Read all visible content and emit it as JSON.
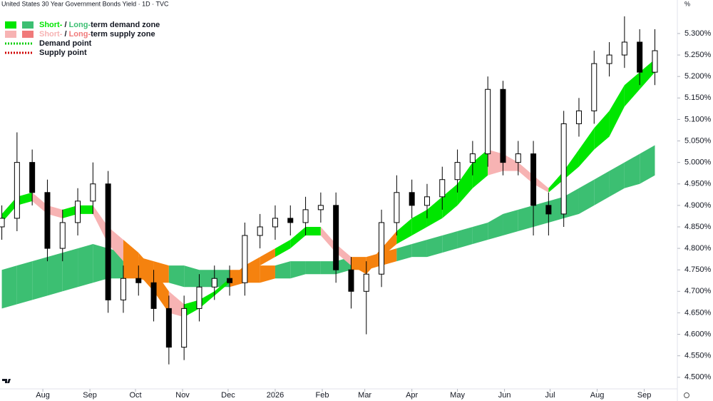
{
  "chart_data": {
    "type": "candlestick",
    "title": "United States 30 Year Government Bonds Yield · 1D · TVC",
    "y_unit": "%",
    "x": [
      4,
      14,
      24,
      34,
      44,
      54,
      64,
      74,
      84,
      94,
      104,
      114,
      124,
      134,
      144,
      154,
      164,
      174,
      184,
      194,
      204,
      214,
      224,
      234,
      244,
      254,
      264,
      274,
      284,
      294,
      304,
      314,
      324,
      334,
      344,
      354,
      364,
      374,
      384,
      394,
      404,
      414,
      424,
      434
    ],
    "open": [
      4.85,
      4.87,
      5.0,
      4.93,
      4.8,
      4.86,
      4.91,
      4.95,
      4.68,
      4.73,
      4.72,
      4.66,
      4.57,
      4.66,
      4.71,
      4.73,
      4.72,
      4.83,
      4.85,
      4.87,
      4.86,
      4.89,
      4.9,
      4.75,
      4.7,
      4.74,
      4.86,
      4.93,
      4.9,
      4.92,
      4.96,
      5.0,
      5.02,
      5.17,
      5.0,
      5.02,
      4.9,
      4.88,
      5.09,
      5.12,
      5.23,
      5.25,
      5.28,
      5.21
    ],
    "high": [
      4.9,
      5.07,
      5.03,
      4.96,
      4.89,
      4.94,
      5.0,
      4.98,
      4.76,
      4.76,
      4.75,
      4.69,
      4.69,
      4.74,
      4.76,
      4.76,
      4.86,
      4.88,
      4.9,
      4.9,
      4.92,
      4.93,
      4.93,
      4.78,
      4.77,
      4.89,
      4.97,
      4.96,
      4.95,
      4.99,
      5.03,
      5.05,
      5.2,
      5.19,
      5.05,
      5.05,
      4.93,
      5.12,
      5.15,
      5.26,
      5.28,
      5.34,
      5.31,
      5.31
    ],
    "low": [
      4.82,
      4.84,
      4.9,
      4.77,
      4.77,
      4.83,
      4.88,
      4.65,
      4.65,
      4.69,
      4.63,
      4.53,
      4.54,
      4.63,
      4.68,
      4.69,
      4.69,
      4.8,
      4.82,
      4.83,
      4.83,
      4.86,
      4.72,
      4.66,
      4.6,
      4.71,
      4.83,
      4.87,
      4.87,
      4.89,
      4.93,
      4.97,
      4.99,
      4.97,
      4.97,
      4.83,
      4.83,
      4.85,
      5.06,
      5.09,
      5.2,
      5.22,
      5.18,
      5.18
    ],
    "close": [
      4.87,
      5.0,
      4.93,
      4.8,
      4.86,
      4.91,
      4.95,
      4.68,
      4.73,
      4.72,
      4.66,
      4.57,
      4.66,
      4.71,
      4.73,
      4.72,
      4.83,
      4.85,
      4.87,
      4.86,
      4.89,
      4.9,
      4.75,
      4.7,
      4.74,
      4.86,
      4.93,
      4.9,
      4.92,
      4.96,
      5.0,
      5.02,
      5.17,
      5.0,
      5.02,
      4.9,
      4.88,
      5.09,
      5.12,
      5.23,
      5.25,
      5.28,
      5.21,
      5.26
    ],
    "short_band": {
      "upper": [
        4.88,
        4.92,
        4.93,
        4.9,
        4.89,
        4.9,
        4.9,
        4.85,
        4.82,
        4.79,
        4.75,
        4.7,
        4.67,
        4.68,
        4.7,
        4.73,
        4.76,
        4.78,
        4.8,
        4.82,
        4.85,
        4.85,
        4.81,
        4.78,
        4.76,
        4.8,
        4.84,
        4.87,
        4.89,
        4.92,
        4.95,
        5.0,
        5.03,
        5.02,
        5.0,
        4.97,
        4.94,
        4.98,
        5.03,
        5.08,
        5.12,
        5.18,
        5.21,
        5.24
      ],
      "lower": [
        4.86,
        4.9,
        4.91,
        4.88,
        4.87,
        4.88,
        4.88,
        4.81,
        4.77,
        4.74,
        4.7,
        4.65,
        4.64,
        4.66,
        4.69,
        4.72,
        4.74,
        4.76,
        4.78,
        4.8,
        4.83,
        4.83,
        4.79,
        4.76,
        4.74,
        4.78,
        4.81,
        4.83,
        4.85,
        4.87,
        4.9,
        4.94,
        4.97,
        4.98,
        4.98,
        4.95,
        4.93,
        4.96,
        4.99,
        5.03,
        5.06,
        5.13,
        5.17,
        5.21
      ]
    },
    "long_band": {
      "upper": [
        4.75,
        4.76,
        4.77,
        4.78,
        4.79,
        4.8,
        4.81,
        4.8,
        4.79,
        4.78,
        4.77,
        4.76,
        4.76,
        4.75,
        4.75,
        4.75,
        4.75,
        4.76,
        4.76,
        4.77,
        4.77,
        4.77,
        4.77,
        4.78,
        4.78,
        4.79,
        4.8,
        4.81,
        4.82,
        4.83,
        4.84,
        4.85,
        4.86,
        4.88,
        4.89,
        4.9,
        4.91,
        4.92,
        4.94,
        4.96,
        4.98,
        5.0,
        5.02,
        5.04
      ],
      "lower": [
        4.66,
        4.67,
        4.68,
        4.69,
        4.7,
        4.71,
        4.72,
        4.73,
        4.73,
        4.73,
        4.72,
        4.72,
        4.71,
        4.71,
        4.71,
        4.71,
        4.72,
        4.72,
        4.73,
        4.73,
        4.74,
        4.74,
        4.74,
        4.75,
        4.75,
        4.76,
        4.77,
        4.78,
        4.78,
        4.79,
        4.8,
        4.81,
        4.82,
        4.83,
        4.84,
        4.85,
        4.86,
        4.87,
        4.88,
        4.9,
        4.92,
        4.94,
        4.95,
        4.97
      ]
    },
    "colors": {
      "up": "#ffffff",
      "down": "#000000",
      "demand_short": "#00e600",
      "demand_long": "#3cbf72",
      "supply_short": "#f7b3b3",
      "supply_long": "#f07a7a",
      "overlap": "#f5820f",
      "demand_point": "#00cc00",
      "supply_point": "#d00000"
    },
    "legend": [
      {
        "parts": [
          "Short-",
          " / ",
          "Long-",
          "term demand zone"
        ],
        "kind": "demand"
      },
      {
        "parts": [
          "Short-",
          " / ",
          "Long-",
          "term supply zone"
        ],
        "kind": "supply"
      },
      {
        "parts": [
          "Demand point"
        ],
        "kind": "demand_point"
      },
      {
        "parts": [
          "Supply point"
        ],
        "kind": "supply_point"
      }
    ],
    "xlim": [
      2.8,
      448.8
    ],
    "xticks": [
      {
        "value": 31,
        "label": "Aug"
      },
      {
        "value": 62,
        "label": "Sep"
      },
      {
        "value": 92,
        "label": "Oct"
      },
      {
        "value": 123,
        "label": "Nov"
      },
      {
        "value": 153,
        "label": "Dec"
      },
      {
        "value": 184,
        "label": "2026"
      },
      {
        "value": 215,
        "label": "Feb"
      },
      {
        "value": 243,
        "label": "Mar"
      },
      {
        "value": 274,
        "label": "Apr"
      },
      {
        "value": 304,
        "label": "May"
      },
      {
        "value": 335,
        "label": "Jun"
      },
      {
        "value": 365,
        "label": "Jul"
      },
      {
        "value": 396,
        "label": "Aug"
      },
      {
        "value": 427,
        "label": "Sep"
      }
    ],
    "ylim": [
      4.473,
      5.378
    ],
    "yticks": [
      {
        "value": 4.5,
        "label": "4.500%"
      },
      {
        "value": 4.55,
        "label": "4.550%"
      },
      {
        "value": 4.6,
        "label": "4.600%"
      },
      {
        "value": 4.65,
        "label": "4.650%"
      },
      {
        "value": 4.7,
        "label": "4.700%"
      },
      {
        "value": 4.75,
        "label": "4.750%"
      },
      {
        "value": 4.8,
        "label": "4.800%"
      },
      {
        "value": 4.85,
        "label": "4.850%"
      },
      {
        "value": 4.9,
        "label": "4.900%"
      },
      {
        "value": 4.95,
        "label": "4.950%"
      },
      {
        "value": 5.0,
        "label": "5.000%"
      },
      {
        "value": 5.05,
        "label": "5.050%"
      },
      {
        "value": 5.1,
        "label": "5.100%"
      },
      {
        "value": 5.15,
        "label": "5.150%"
      },
      {
        "value": 5.2,
        "label": "5.200%"
      },
      {
        "value": 5.25,
        "label": "5.250%"
      },
      {
        "value": 5.3,
        "label": "5.300%"
      }
    ]
  }
}
